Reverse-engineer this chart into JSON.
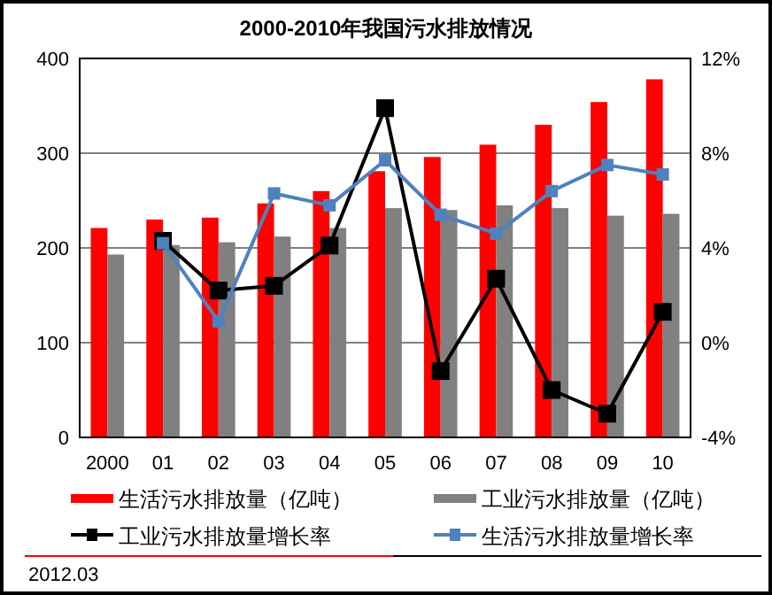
{
  "chart_data": {
    "type": "bar",
    "title": "2000-2010年我国污水排放情况",
    "categories": [
      "2000",
      "01",
      "02",
      "03",
      "04",
      "05",
      "06",
      "07",
      "08",
      "09",
      "10"
    ],
    "series": [
      {
        "name": "生活污水排放量（亿吨）",
        "color": "#ff0000",
        "values": [
          221,
          230,
          232,
          247,
          260,
          281,
          296,
          309,
          330,
          354,
          378
        ]
      },
      {
        "name": "工业污水排放量（亿吨）",
        "color": "#808080",
        "values": [
          193,
          203,
          206,
          212,
          221,
          242,
          240,
          245,
          242,
          234,
          236
        ]
      },
      {
        "name": "工业污水排放量增长率",
        "type": "line",
        "axis": "y2",
        "color": "#000000",
        "marker": "square",
        "values": [
          null,
          4.3,
          2.2,
          2.4,
          4.1,
          9.9,
          -1.2,
          2.7,
          -2.0,
          -3.0,
          1.3
        ]
      },
      {
        "name": "生活污水排放量增长率",
        "type": "line",
        "axis": "y2",
        "color": "#4f81bd",
        "marker": "square",
        "values": [
          null,
          4.2,
          0.9,
          6.3,
          5.8,
          7.7,
          5.4,
          4.6,
          6.4,
          7.5,
          7.1
        ]
      }
    ],
    "ylim": [
      0,
      400
    ],
    "yticks": [
      0,
      100,
      200,
      300,
      400
    ],
    "y2lim": [
      -4,
      12
    ],
    "y2ticks": [
      {
        "value": -4,
        "label": "-4%"
      },
      {
        "value": 0,
        "label": "0%"
      },
      {
        "value": 4,
        "label": "4%"
      },
      {
        "value": 8,
        "label": "8%"
      },
      {
        "value": 12,
        "label": "12%"
      }
    ],
    "grid": "y",
    "legend": "bottom",
    "annotations": [
      "2012.03"
    ]
  }
}
